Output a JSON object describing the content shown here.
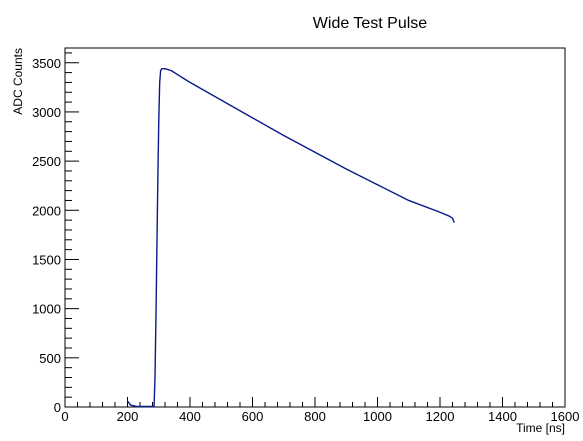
{
  "chart_data": {
    "type": "line",
    "title": "Wide Test Pulse",
    "xlabel": "Time [ns]",
    "ylabel": "ADC Counts",
    "xlim": [
      0,
      1600
    ],
    "ylim": [
      0,
      3650
    ],
    "xticks": [
      0,
      200,
      400,
      600,
      800,
      1000,
      1200,
      1400,
      1600
    ],
    "yticks": [
      0,
      500,
      1000,
      1500,
      2000,
      2500,
      3000,
      3500
    ],
    "grid": false,
    "line_color": "#0a1a8c",
    "series": [
      {
        "x": [
          200,
          210,
          230,
          260,
          285,
          288,
          291,
          294,
          297,
          300,
          303,
          306,
          310,
          320,
          340,
          360,
          380,
          400,
          500,
          600,
          700,
          800,
          900,
          1000,
          1100,
          1200,
          1230,
          1240,
          1245
        ],
        "y": [
          60,
          20,
          5,
          5,
          5,
          300,
          900,
          1600,
          2300,
          2900,
          3300,
          3420,
          3440,
          3440,
          3420,
          3380,
          3340,
          3300,
          3120,
          2940,
          2760,
          2590,
          2420,
          2260,
          2100,
          1980,
          1940,
          1920,
          1880
        ]
      }
    ]
  }
}
